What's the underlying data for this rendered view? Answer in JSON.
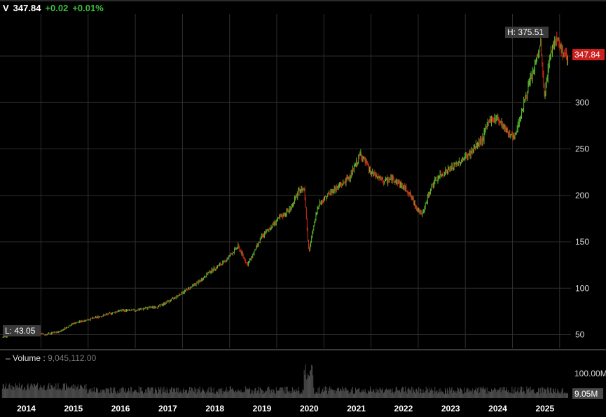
{
  "header": {
    "symbol": "V",
    "last": "347.84",
    "change": "+0.02",
    "change_pct": "+0.01%"
  },
  "price_axis": {
    "ticks": [
      "50",
      "100",
      "150",
      "200",
      "250",
      "300"
    ],
    "last_tag": "347.84",
    "last_tag_color": "#cc1f1f"
  },
  "annotations": {
    "high_label": "H: 375.51",
    "low_label": "L: 43.05"
  },
  "volume": {
    "label": "Volume",
    "value": "9,045,112.00",
    "axis_max_label": "100.00M",
    "last_label": "9.05M"
  },
  "colors": {
    "up": "#5cb82e",
    "down": "#d62a1a",
    "grid": "#2e2e2e",
    "volume_bar": "#4d4d4d"
  },
  "chart_data": {
    "type": "candlestick",
    "series_name": "V",
    "x_unit": "year",
    "x_labels": [
      "2014",
      "2015",
      "2016",
      "2017",
      "2018",
      "2019",
      "2020",
      "2021",
      "2022",
      "2023",
      "2024",
      "2025"
    ],
    "ylim": [
      30,
      390
    ],
    "y_ticks": [
      50,
      100,
      150,
      200,
      250,
      300
    ],
    "high": 375.51,
    "low": 43.05,
    "last": 347.84,
    "price_path": [
      [
        2013.7,
        47
      ],
      [
        2014.0,
        52
      ],
      [
        2014.3,
        55
      ],
      [
        2014.6,
        50
      ],
      [
        2014.9,
        53
      ],
      [
        2015.2,
        62
      ],
      [
        2015.5,
        66
      ],
      [
        2015.8,
        70
      ],
      [
        2016.0,
        73
      ],
      [
        2016.2,
        76
      ],
      [
        2016.5,
        76
      ],
      [
        2016.8,
        79
      ],
      [
        2017.0,
        80
      ],
      [
        2017.3,
        88
      ],
      [
        2017.6,
        98
      ],
      [
        2017.9,
        108
      ],
      [
        2018.1,
        118
      ],
      [
        2018.4,
        128
      ],
      [
        2018.7,
        145
      ],
      [
        2018.9,
        125
      ],
      [
        2019.2,
        155
      ],
      [
        2019.5,
        172
      ],
      [
        2019.8,
        185
      ],
      [
        2020.0,
        205
      ],
      [
        2020.1,
        208
      ],
      [
        2020.2,
        140
      ],
      [
        2020.4,
        190
      ],
      [
        2020.7,
        205
      ],
      [
        2020.9,
        212
      ],
      [
        2021.1,
        222
      ],
      [
        2021.3,
        245
      ],
      [
        2021.5,
        225
      ],
      [
        2021.8,
        215
      ],
      [
        2022.0,
        218
      ],
      [
        2022.3,
        205
      ],
      [
        2022.5,
        186
      ],
      [
        2022.6,
        178
      ],
      [
        2022.8,
        210
      ],
      [
        2023.0,
        222
      ],
      [
        2023.3,
        232
      ],
      [
        2023.6,
        244
      ],
      [
        2023.9,
        262
      ],
      [
        2024.0,
        280
      ],
      [
        2024.2,
        284
      ],
      [
        2024.4,
        270
      ],
      [
        2024.55,
        260
      ],
      [
        2024.7,
        288
      ],
      [
        2024.85,
        315
      ],
      [
        2025.0,
        340
      ],
      [
        2025.12,
        362
      ],
      [
        2025.2,
        304
      ],
      [
        2025.3,
        348
      ],
      [
        2025.45,
        372
      ],
      [
        2025.6,
        352
      ],
      [
        2025.75,
        345
      ],
      [
        2025.85,
        347.84
      ]
    ],
    "volume_ylim": [
      0,
      100
    ],
    "volume_unit": "M",
    "volume_last": 9.05
  }
}
